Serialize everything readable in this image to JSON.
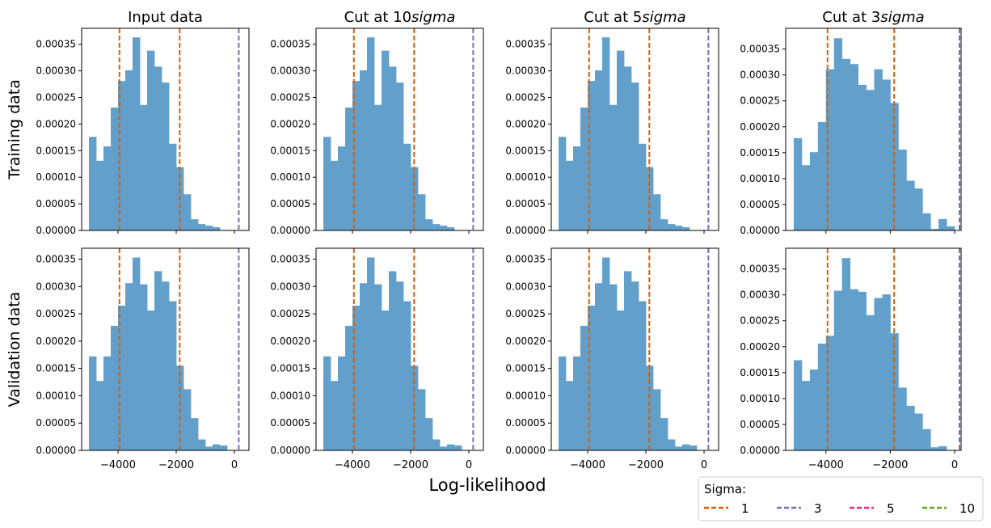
{
  "figure": {
    "xlabel": "Log-likelihood",
    "row_labels": [
      "Training data",
      "Validation data"
    ],
    "column_titles": [
      "Input data",
      "Cut at 10",
      "Cut at 5",
      "Cut at 3"
    ],
    "title_suffix": "sigma"
  },
  "legend": {
    "title": "Sigma:",
    "location": "bottom-right",
    "entries": [
      {
        "label": "1",
        "color": "#d95f02"
      },
      {
        "label": "3",
        "color": "#7570b3"
      },
      {
        "label": "5",
        "color": "#e7298a"
      },
      {
        "label": "10",
        "color": "#66a61e"
      }
    ]
  },
  "chart_data": [
    {
      "type": "bar",
      "row": "Training data",
      "title": "Input data",
      "bar_color": "#62a0cb",
      "bins_start": -5000,
      "bin_width": 250,
      "xlim": [
        -5250,
        500
      ],
      "ylim": [
        0,
        0.00038
      ],
      "xticks": [
        -4000,
        -2000,
        0
      ],
      "yticks": [
        0,
        5e-05,
        0.0001,
        0.00015,
        0.0002,
        0.00025,
        0.0003,
        0.00035
      ],
      "values": [
        0.000176,
        0.000131,
        0.000158,
        0.000231,
        0.000281,
        0.000301,
        0.000363,
        0.000236,
        0.000338,
        0.000308,
        0.000278,
        0.000163,
        0.000119,
        6.8e-05,
        2.1e-05,
        1.2e-05,
        9e-06,
        6e-06
      ],
      "vlines": [
        {
          "x": -3950,
          "sigma": "1"
        },
        {
          "x": -1880,
          "sigma": "1"
        },
        {
          "x": 150,
          "sigma": "3"
        }
      ]
    },
    {
      "type": "bar",
      "row": "Training data",
      "title": "Cut at 10sigma",
      "bar_color": "#62a0cb",
      "bins_start": -5000,
      "bin_width": 250,
      "xlim": [
        -5250,
        500
      ],
      "ylim": [
        0,
        0.00038
      ],
      "xticks": [
        -4000,
        -2000,
        0
      ],
      "yticks": [
        0,
        5e-05,
        0.0001,
        0.00015,
        0.0002,
        0.00025,
        0.0003,
        0.00035
      ],
      "values": [
        0.000176,
        0.000131,
        0.000158,
        0.000231,
        0.000281,
        0.000301,
        0.000363,
        0.000236,
        0.000338,
        0.000308,
        0.000278,
        0.000163,
        0.000119,
        6.8e-05,
        2.1e-05,
        1.2e-05,
        9e-06,
        6e-06
      ],
      "vlines": [
        {
          "x": -3950,
          "sigma": "1"
        },
        {
          "x": -1880,
          "sigma": "1"
        },
        {
          "x": 150,
          "sigma": "3"
        }
      ]
    },
    {
      "type": "bar",
      "row": "Training data",
      "title": "Cut at 5sigma",
      "bar_color": "#62a0cb",
      "bins_start": -5000,
      "bin_width": 250,
      "xlim": [
        -5250,
        500
      ],
      "ylim": [
        0,
        0.00038
      ],
      "xticks": [
        -4000,
        -2000,
        0
      ],
      "yticks": [
        0,
        5e-05,
        0.0001,
        0.00015,
        0.0002,
        0.00025,
        0.0003,
        0.00035
      ],
      "values": [
        0.000176,
        0.000131,
        0.000158,
        0.000231,
        0.000281,
        0.000301,
        0.000363,
        0.000236,
        0.000338,
        0.000308,
        0.000278,
        0.000163,
        0.000119,
        6.8e-05,
        2.1e-05,
        1.2e-05,
        9e-06,
        6e-06
      ],
      "vlines": [
        {
          "x": -3950,
          "sigma": "1"
        },
        {
          "x": -1880,
          "sigma": "1"
        },
        {
          "x": 150,
          "sigma": "3"
        }
      ]
    },
    {
      "type": "bar",
      "row": "Training data",
      "title": "Cut at 3sigma",
      "bar_color": "#62a0cb",
      "bins_start": -5000,
      "bin_width": 250,
      "xlim": [
        -5250,
        200
      ],
      "ylim": [
        0,
        0.00039
      ],
      "xticks": [
        -4000,
        -2000,
        0
      ],
      "yticks": [
        0,
        5e-05,
        0.0001,
        0.00015,
        0.0002,
        0.00025,
        0.0003,
        0.00035
      ],
      "values": [
        0.000178,
        0.000126,
        0.000151,
        0.000209,
        0.000311,
        0.000371,
        0.000331,
        0.000321,
        0.000281,
        0.000271,
        0.000311,
        0.000291,
        0.000246,
        0.000156,
        9.6e-05,
        8.1e-05,
        3.3e-05,
        3e-06,
        2.2e-05,
        8e-06
      ],
      "vlines": [
        {
          "x": -3950,
          "sigma": "1"
        },
        {
          "x": -1880,
          "sigma": "1"
        },
        {
          "x": 150,
          "sigma": "3"
        }
      ]
    },
    {
      "type": "bar",
      "row": "Validation data",
      "title": "Input data",
      "bar_color": "#62a0cb",
      "bins_start": -5000,
      "bin_width": 250,
      "xlim": [
        -5250,
        500
      ],
      "ylim": [
        0,
        0.00037
      ],
      "xticks": [
        -4000,
        -2000,
        0
      ],
      "yticks": [
        0,
        5e-05,
        0.0001,
        0.00015,
        0.0002,
        0.00025,
        0.0003,
        0.00035
      ],
      "values": [
        0.000172,
        0.000127,
        0.000172,
        0.000228,
        0.000265,
        0.000306,
        0.000353,
        0.000304,
        0.000256,
        0.000328,
        0.000309,
        0.000273,
        0.000155,
        0.000112,
        5.9e-05,
        2e-05,
        7e-06,
        1.1e-05,
        9e-06
      ],
      "vlines": [
        {
          "x": -3950,
          "sigma": "1"
        },
        {
          "x": -1880,
          "sigma": "1"
        },
        {
          "x": 150,
          "sigma": "3"
        }
      ]
    },
    {
      "type": "bar",
      "row": "Validation data",
      "title": "Cut at 10sigma",
      "bar_color": "#62a0cb",
      "bins_start": -5000,
      "bin_width": 250,
      "xlim": [
        -5250,
        500
      ],
      "ylim": [
        0,
        0.00037
      ],
      "xticks": [
        -4000,
        -2000,
        0
      ],
      "yticks": [
        0,
        5e-05,
        0.0001,
        0.00015,
        0.0002,
        0.00025,
        0.0003,
        0.00035
      ],
      "values": [
        0.000172,
        0.000127,
        0.000172,
        0.000228,
        0.000265,
        0.000306,
        0.000353,
        0.000304,
        0.000256,
        0.000328,
        0.000309,
        0.000273,
        0.000155,
        0.000112,
        5.9e-05,
        2e-05,
        7e-06,
        1.1e-05,
        9e-06
      ],
      "vlines": [
        {
          "x": -3950,
          "sigma": "1"
        },
        {
          "x": -1880,
          "sigma": "1"
        },
        {
          "x": 150,
          "sigma": "3"
        }
      ]
    },
    {
      "type": "bar",
      "row": "Validation data",
      "title": "Cut at 5sigma",
      "bar_color": "#62a0cb",
      "bins_start": -5000,
      "bin_width": 250,
      "xlim": [
        -5250,
        500
      ],
      "ylim": [
        0,
        0.00037
      ],
      "xticks": [
        -4000,
        -2000,
        0
      ],
      "yticks": [
        0,
        5e-05,
        0.0001,
        0.00015,
        0.0002,
        0.00025,
        0.0003,
        0.00035
      ],
      "values": [
        0.000172,
        0.000127,
        0.000172,
        0.000228,
        0.000265,
        0.000306,
        0.000353,
        0.000304,
        0.000256,
        0.000328,
        0.000309,
        0.000273,
        0.000155,
        0.000112,
        5.9e-05,
        2e-05,
        7e-06,
        1.1e-05,
        9e-06
      ],
      "vlines": [
        {
          "x": -3950,
          "sigma": "1"
        },
        {
          "x": -1880,
          "sigma": "1"
        },
        {
          "x": 150,
          "sigma": "3"
        }
      ]
    },
    {
      "type": "bar",
      "row": "Validation data",
      "title": "Cut at 3sigma",
      "bar_color": "#62a0cb",
      "bins_start": -5000,
      "bin_width": 250,
      "xlim": [
        -5250,
        200
      ],
      "ylim": [
        0,
        0.00039
      ],
      "xticks": [
        -4000,
        -2000,
        0
      ],
      "yticks": [
        0,
        5e-05,
        0.0001,
        0.00015,
        0.0002,
        0.00025,
        0.0003,
        0.00035
      ],
      "values": [
        0.000174,
        0.000134,
        0.000156,
        0.000206,
        0.000221,
        0.000308,
        0.000371,
        0.000311,
        0.000306,
        0.000261,
        0.000294,
        0.000301,
        0.000226,
        0.000121,
        8.6e-05,
        7.1e-05,
        4.1e-05,
        6e-06,
        8e-06
      ],
      "vlines": [
        {
          "x": -3950,
          "sigma": "1"
        },
        {
          "x": -1880,
          "sigma": "1"
        },
        {
          "x": 150,
          "sigma": "3"
        }
      ]
    }
  ]
}
